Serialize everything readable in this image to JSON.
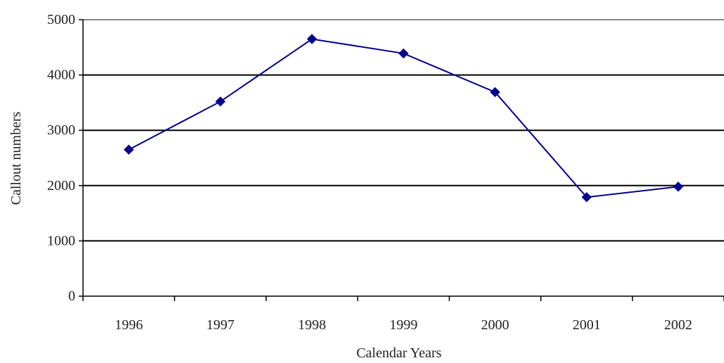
{
  "chart_data": {
    "type": "line",
    "title": "",
    "xlabel": "Calendar Years",
    "ylabel": "Callout numbers",
    "categories": [
      "1996",
      "1997",
      "1998",
      "1999",
      "2000",
      "2001",
      "2002"
    ],
    "series": [
      {
        "values": [
          2650,
          3520,
          4650,
          4390,
          3690,
          1790,
          1980
        ],
        "color": "#00008B",
        "marker": "diamond"
      }
    ],
    "ylim": [
      0,
      5000
    ],
    "yticks": [
      "0",
      "1000",
      "2000",
      "3000",
      "4000",
      "5000"
    ],
    "grid": "horizontal",
    "legend": "none"
  }
}
